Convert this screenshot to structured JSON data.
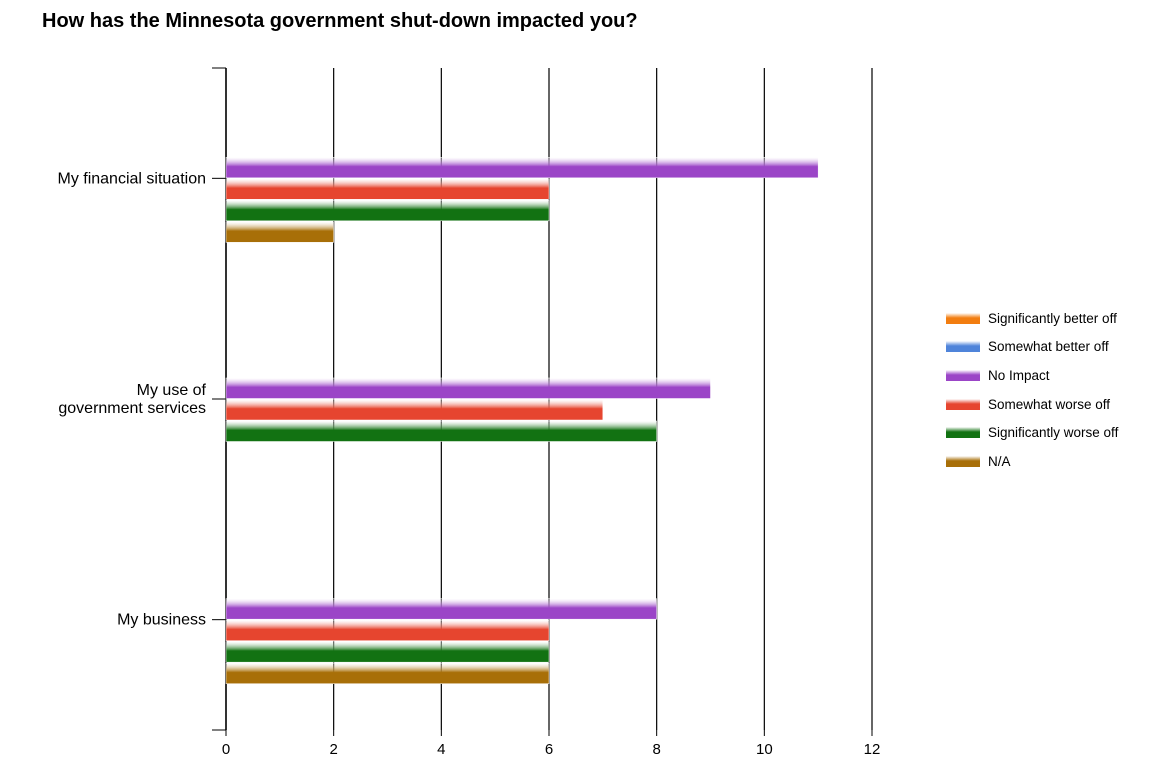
{
  "chart_data": {
    "type": "bar",
    "orientation": "horizontal",
    "title": "How has the Minnesota government shut-down impacted you?",
    "xlabel": "",
    "ylabel": "",
    "xlim": [
      0,
      12
    ],
    "x_ticks": [
      0,
      2,
      4,
      6,
      8,
      10,
      12
    ],
    "grid": true,
    "legend_position": "right",
    "categories": [
      [
        "My financial situation"
      ],
      [
        "My use of",
        "government services"
      ],
      [
        "My business"
      ]
    ],
    "series": [
      {
        "name": "Significantly better off",
        "color": "#f27d10",
        "values": [
          0,
          0,
          0
        ]
      },
      {
        "name": "Somewhat better off",
        "color": "#4f84da",
        "values": [
          0,
          0,
          0
        ]
      },
      {
        "name": "No Impact",
        "color": "#9b45c7",
        "values": [
          11,
          9,
          8
        ]
      },
      {
        "name": "Somewhat worse off",
        "color": "#e6452f",
        "values": [
          6,
          7,
          6
        ]
      },
      {
        "name": "Significantly worse off",
        "color": "#127212",
        "values": [
          6,
          8,
          6
        ]
      },
      {
        "name": "N/A",
        "color": "#a86f08",
        "values": [
          2,
          0,
          6
        ]
      }
    ]
  }
}
